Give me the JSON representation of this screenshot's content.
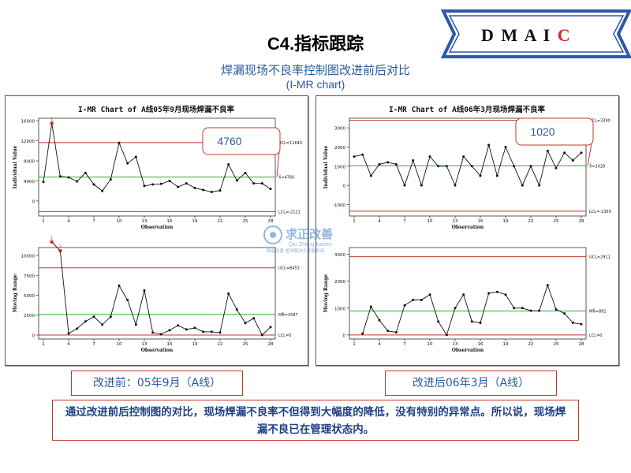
{
  "banner": {
    "text": "D M A I",
    "accent": "C",
    "fill": "#ffffff",
    "border": "#2f56a8",
    "accent_color": "#d9241d"
  },
  "title": "C4.指标跟踪",
  "subtitle": "焊漏现场不良率控制图改进前后对比",
  "subtitle2": "(I-MR chart)",
  "watermark": {
    "line1": "求正改善",
    "line2": "Qiu Zheng kaizen",
    "line3": "精益改善 整体解决方案服务商"
  },
  "captions": {
    "before": "改进前：05年9月（A线）",
    "after": "改进后06年3月（A线）"
  },
  "conclusion": "通过改进前后控制图的对比，现场焊漏不良率不但得到大幅度的降低，没有特别的异常点。所以说，现场焊漏不良已在管理状态内。",
  "chart_data": [
    {
      "type": "line",
      "title": "I-MR Chart of A线05年9月现场焊漏不良率",
      "callout": "4760",
      "xlabel": "Observation",
      "x_ticks": [
        1,
        4,
        7,
        10,
        13,
        16,
        19,
        22,
        25,
        28
      ],
      "individual": {
        "ylabel": "Individual Value",
        "y_ticks": [
          "0",
          "4000",
          "8000",
          "12000",
          "16000"
        ],
        "ylim": [
          -3000,
          16500
        ],
        "ucl_label": "UCL=11640",
        "center_label": "X̄=4760",
        "lcl_label": "LCL=-2121",
        "ucl": 11640,
        "center": 4760,
        "lcl": -2121,
        "values": [
          3800,
          15500,
          4900,
          4700,
          3900,
          5600,
          3300,
          2000,
          4300,
          11600,
          7500,
          8800,
          3000,
          3300,
          3400,
          4000,
          2800,
          3500,
          2600,
          2200,
          1800,
          2100,
          7300,
          4100,
          5600,
          3500,
          3500,
          2400
        ],
        "flagged": [
          2
        ]
      },
      "moving_range": {
        "ylabel": "Moving Range",
        "y_ticks": [
          "0",
          "2500",
          "5000",
          "7500",
          "10000"
        ],
        "ylim": [
          -500,
          11000
        ],
        "ucl_label": "UCL=8453",
        "center_label": "MR̄=2587",
        "lcl_label": "LCL=0",
        "ucl": 8453,
        "center": 2587,
        "lcl": 0,
        "values": [
          null,
          11700,
          10600,
          200,
          800,
          1700,
          2300,
          1300,
          2300,
          6200,
          4400,
          1300,
          5600,
          300,
          100,
          600,
          1200,
          700,
          900,
          400,
          400,
          300,
          5200,
          3200,
          1500,
          2100,
          0,
          1000
        ],
        "flagged": [
          2,
          3
        ]
      }
    },
    {
      "type": "line",
      "title": "I-MR Chart of A线06年3月现场焊漏不良率",
      "callout": "1020",
      "xlabel": "Observation",
      "x_ticks": [
        1,
        4,
        7,
        10,
        13,
        16,
        19,
        22,
        25,
        28
      ],
      "individual": {
        "ylabel": "Individual Value",
        "y_ticks": [
          "-1000",
          "0",
          "1000",
          "2000",
          "3000"
        ],
        "ylim": [
          -1600,
          3500
        ],
        "ucl_label": "UCL=3390",
        "center_label": "X̄=1020",
        "lcl_label": "LCL=-1350",
        "ucl": 3390,
        "center": 1020,
        "lcl": -1350,
        "values": [
          1500,
          1600,
          500,
          1100,
          1200,
          1100,
          0,
          1300,
          0,
          1500,
          1000,
          1000,
          0,
          1500,
          1000,
          500,
          2100,
          500,
          2000,
          1000,
          0,
          1000,
          0,
          1800,
          900,
          1700,
          1300,
          1700
        ],
        "flagged": []
      },
      "moving_range": {
        "ylabel": "Moving Range",
        "y_ticks": [
          "0",
          "1000",
          "2000",
          "3000"
        ],
        "ylim": [
          -150,
          3250
        ],
        "ucl_label": "UCL=2911",
        "center_label": "MR̄=891",
        "lcl_label": "LCL=0",
        "ucl": 2911,
        "center": 891,
        "lcl": 0,
        "values": [
          null,
          50,
          1050,
          550,
          150,
          100,
          1100,
          1300,
          1300,
          1500,
          500,
          0,
          1000,
          1500,
          500,
          450,
          1550,
          1600,
          1500,
          1000,
          1000,
          900,
          900,
          1850,
          950,
          800,
          450,
          400
        ],
        "flagged": []
      }
    }
  ]
}
